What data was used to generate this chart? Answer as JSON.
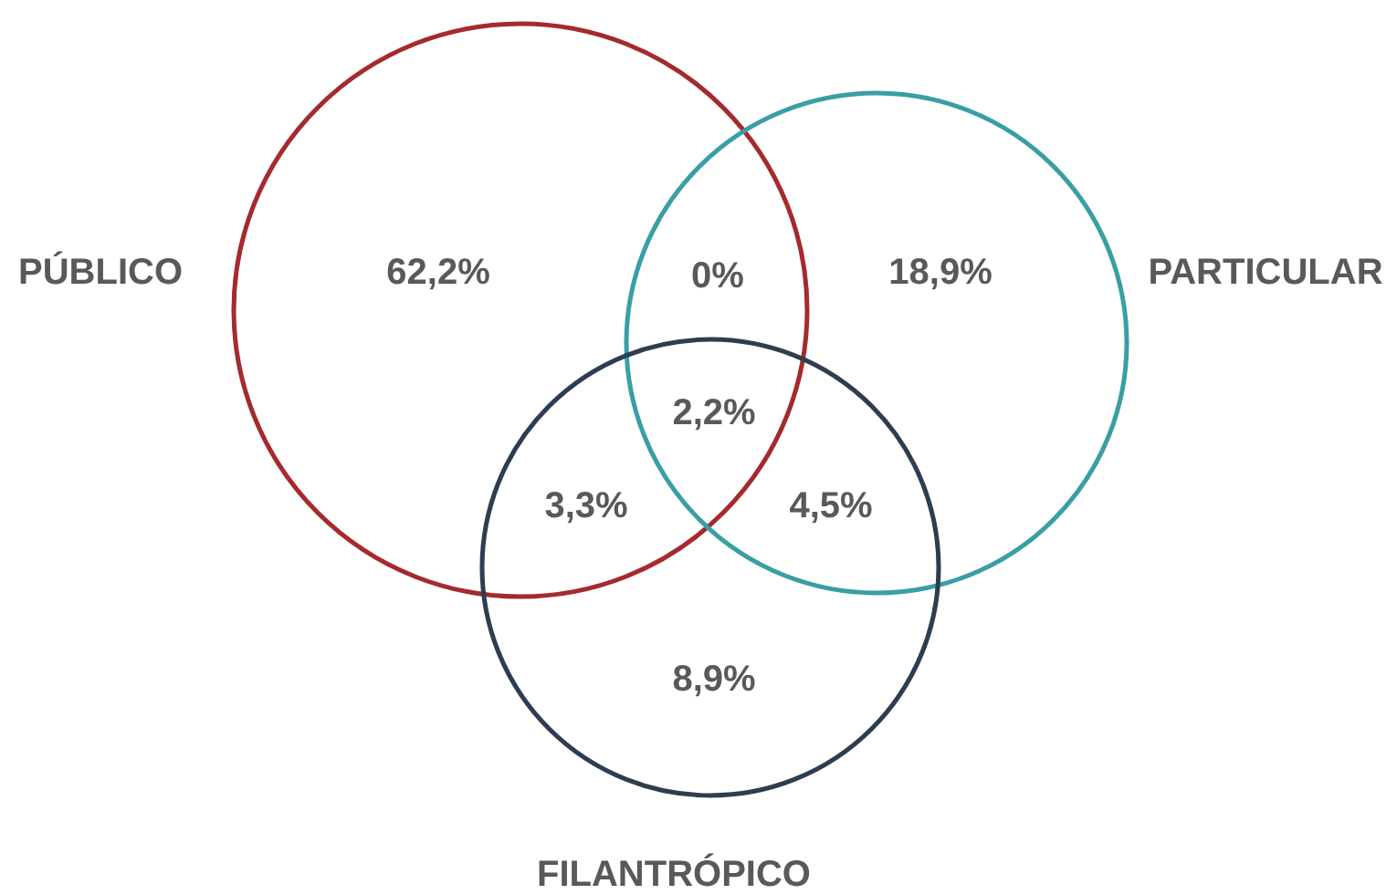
{
  "chart_data": {
    "type": "other",
    "categories": [
      "PÚBLICO",
      "PARTICULAR",
      "FILANTRÓPICO"
    ],
    "colors": [
      "#a52a2e",
      "#3a9ea5",
      "#2c3e50"
    ],
    "values": [
      62.2,
      18.9,
      8.9
    ],
    "value_labels": [
      "62,2%",
      "18,9%",
      "8,9%"
    ],
    "data_labels": true,
    "annotations": [
      "0%",
      "3,3%",
      "4,5%",
      "2,2%"
    ]
  }
}
